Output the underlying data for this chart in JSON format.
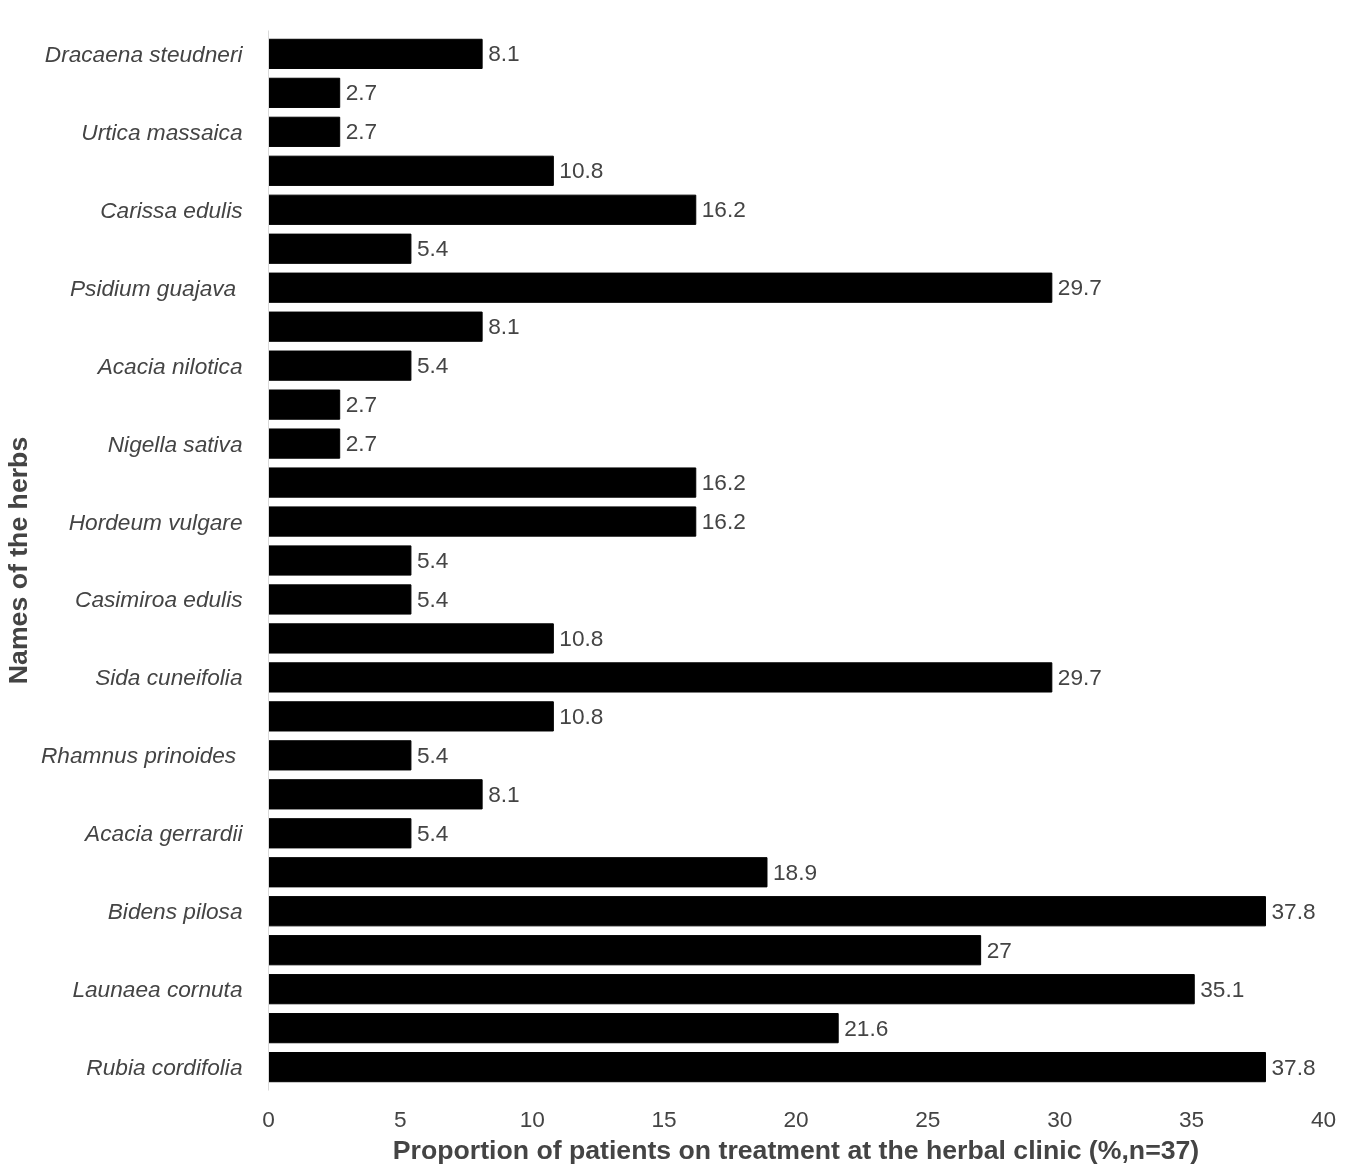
{
  "chart_data": {
    "type": "bar",
    "orientation": "horizontal",
    "xlabel": "Proportion of patients on treatment at the herbal clinic (%,n=37)",
    "ylabel": "Names of the herbs",
    "categories": [
      "Dracaena steudneri",
      null,
      "Urtica massaica",
      null,
      "Carissa edulis",
      null,
      "Psidium  guajava",
      null,
      "Acacia nilotica",
      null,
      "Nigella sativa",
      null,
      "Hordeum vulgare",
      null,
      "Casimiroa edulis",
      null,
      "Sida cuneifolia",
      null,
      "Rhamnus  prinoides",
      null,
      "Acacia gerrardii",
      null,
      "Bidens pilosa",
      null,
      "Launaea cornuta",
      null,
      "Rubia cordifolia"
    ],
    "values": [
      8.1,
      2.7,
      2.7,
      10.8,
      16.2,
      5.4,
      29.7,
      8.1,
      5.4,
      2.7,
      2.7,
      16.2,
      16.2,
      5.4,
      5.4,
      10.8,
      29.7,
      10.8,
      5.4,
      8.1,
      5.4,
      18.9,
      37.8,
      27,
      35.1,
      21.6,
      37.8
    ],
    "color": "#000000",
    "xlim": [
      0,
      40
    ],
    "xticks": [
      0,
      5,
      10,
      15,
      20,
      25,
      30,
      35,
      40
    ],
    "data_labels": true
  }
}
